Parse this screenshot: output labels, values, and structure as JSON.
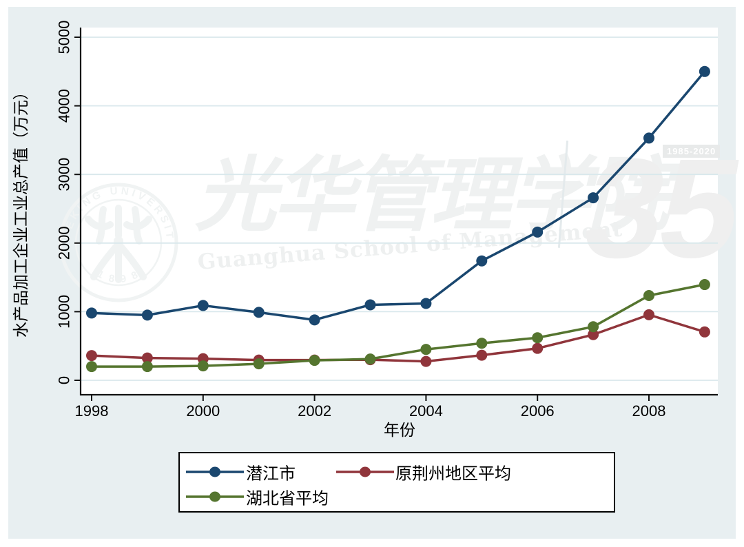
{
  "figure": {
    "background": "#E8EFF1",
    "plot_background": "#FFFFFF",
    "grid_color": "#D9E8EC",
    "axis_color": "#111111",
    "text_color": "#000000",
    "legend_border": "#000000"
  },
  "chart_data": {
    "type": "line",
    "title": "",
    "xlabel": "年份",
    "ylabel": "水产品加工企业工业总产值（万元）",
    "x": [
      1998,
      1999,
      2000,
      2001,
      2002,
      2003,
      2004,
      2005,
      2006,
      2007,
      2008,
      2009
    ],
    "x_ticks": [
      1998,
      2000,
      2002,
      2004,
      2006,
      2008
    ],
    "y_ticks": [
      0,
      1000,
      2000,
      3000,
      4000,
      5000
    ],
    "ylim": [
      0,
      5000
    ],
    "grid": true,
    "legend_position": "bottom",
    "series": [
      {
        "name": "潜江市",
        "color": "#1A476F",
        "values": [
          980,
          950,
          1090,
          990,
          880,
          1100,
          1120,
          1740,
          2160,
          2660,
          3530,
          4500
        ]
      },
      {
        "name": "原荆州地区平均",
        "color": "#90353B",
        "values": [
          360,
          325,
          315,
          295,
          295,
          300,
          275,
          365,
          465,
          665,
          955,
          705
        ]
      },
      {
        "name": "湖北省平均",
        "color": "#55752F",
        "values": [
          200,
          200,
          210,
          240,
          290,
          310,
          450,
          540,
          620,
          780,
          1235,
          1395
        ]
      }
    ]
  },
  "watermark": {
    "seal_ring_text": "PEKING UNIVERSITY",
    "seal_year": "1 8 9 8",
    "calligraphy": "光华管理学院",
    "latin_text": "Guanghua School of Management",
    "anniversary_number": "35",
    "anniversary_years": "1985-2020"
  }
}
